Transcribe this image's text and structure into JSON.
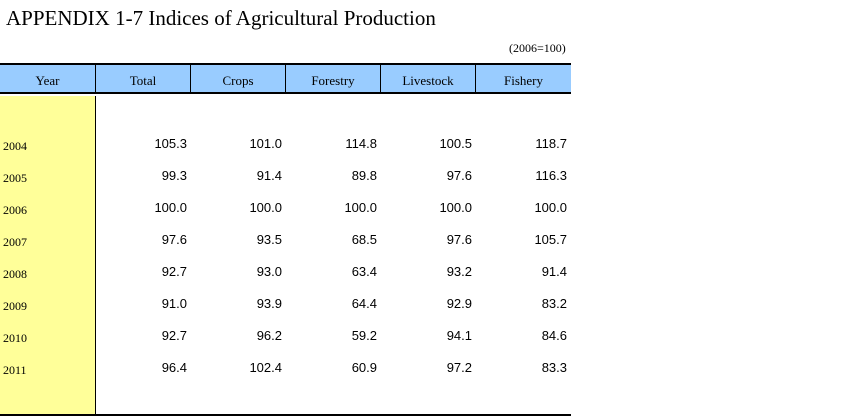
{
  "title": "APPENDIX 1-7 Indices of Agricultural Production",
  "unit_note": "(2006=100)",
  "columns": [
    "Year",
    "Total",
    "Crops",
    "Forestry",
    "Livestock",
    "Fishery"
  ],
  "rows": [
    {
      "year": "2004",
      "values": [
        "105.3",
        "101.0",
        "114.8",
        "100.5",
        "118.7"
      ]
    },
    {
      "year": "2005",
      "values": [
        "99.3",
        "91.4",
        "89.8",
        "97.6",
        "116.3"
      ]
    },
    {
      "year": "2006",
      "values": [
        "100.0",
        "100.0",
        "100.0",
        "100.0",
        "100.0"
      ]
    },
    {
      "year": "2007",
      "values": [
        "97.6",
        "93.5",
        "68.5",
        "97.6",
        "105.7"
      ]
    },
    {
      "year": "2008",
      "values": [
        "92.7",
        "93.0",
        "63.4",
        "93.2",
        "91.4"
      ]
    },
    {
      "year": "2009",
      "values": [
        "91.0",
        "93.9",
        "64.4",
        "92.9",
        "83.2"
      ]
    },
    {
      "year": "2010",
      "values": [
        "92.7",
        "96.2",
        "59.2",
        "94.1",
        "84.6"
      ]
    },
    {
      "year": "2011",
      "values": [
        "96.4",
        "102.4",
        "60.9",
        "97.2",
        "83.3"
      ]
    }
  ]
}
